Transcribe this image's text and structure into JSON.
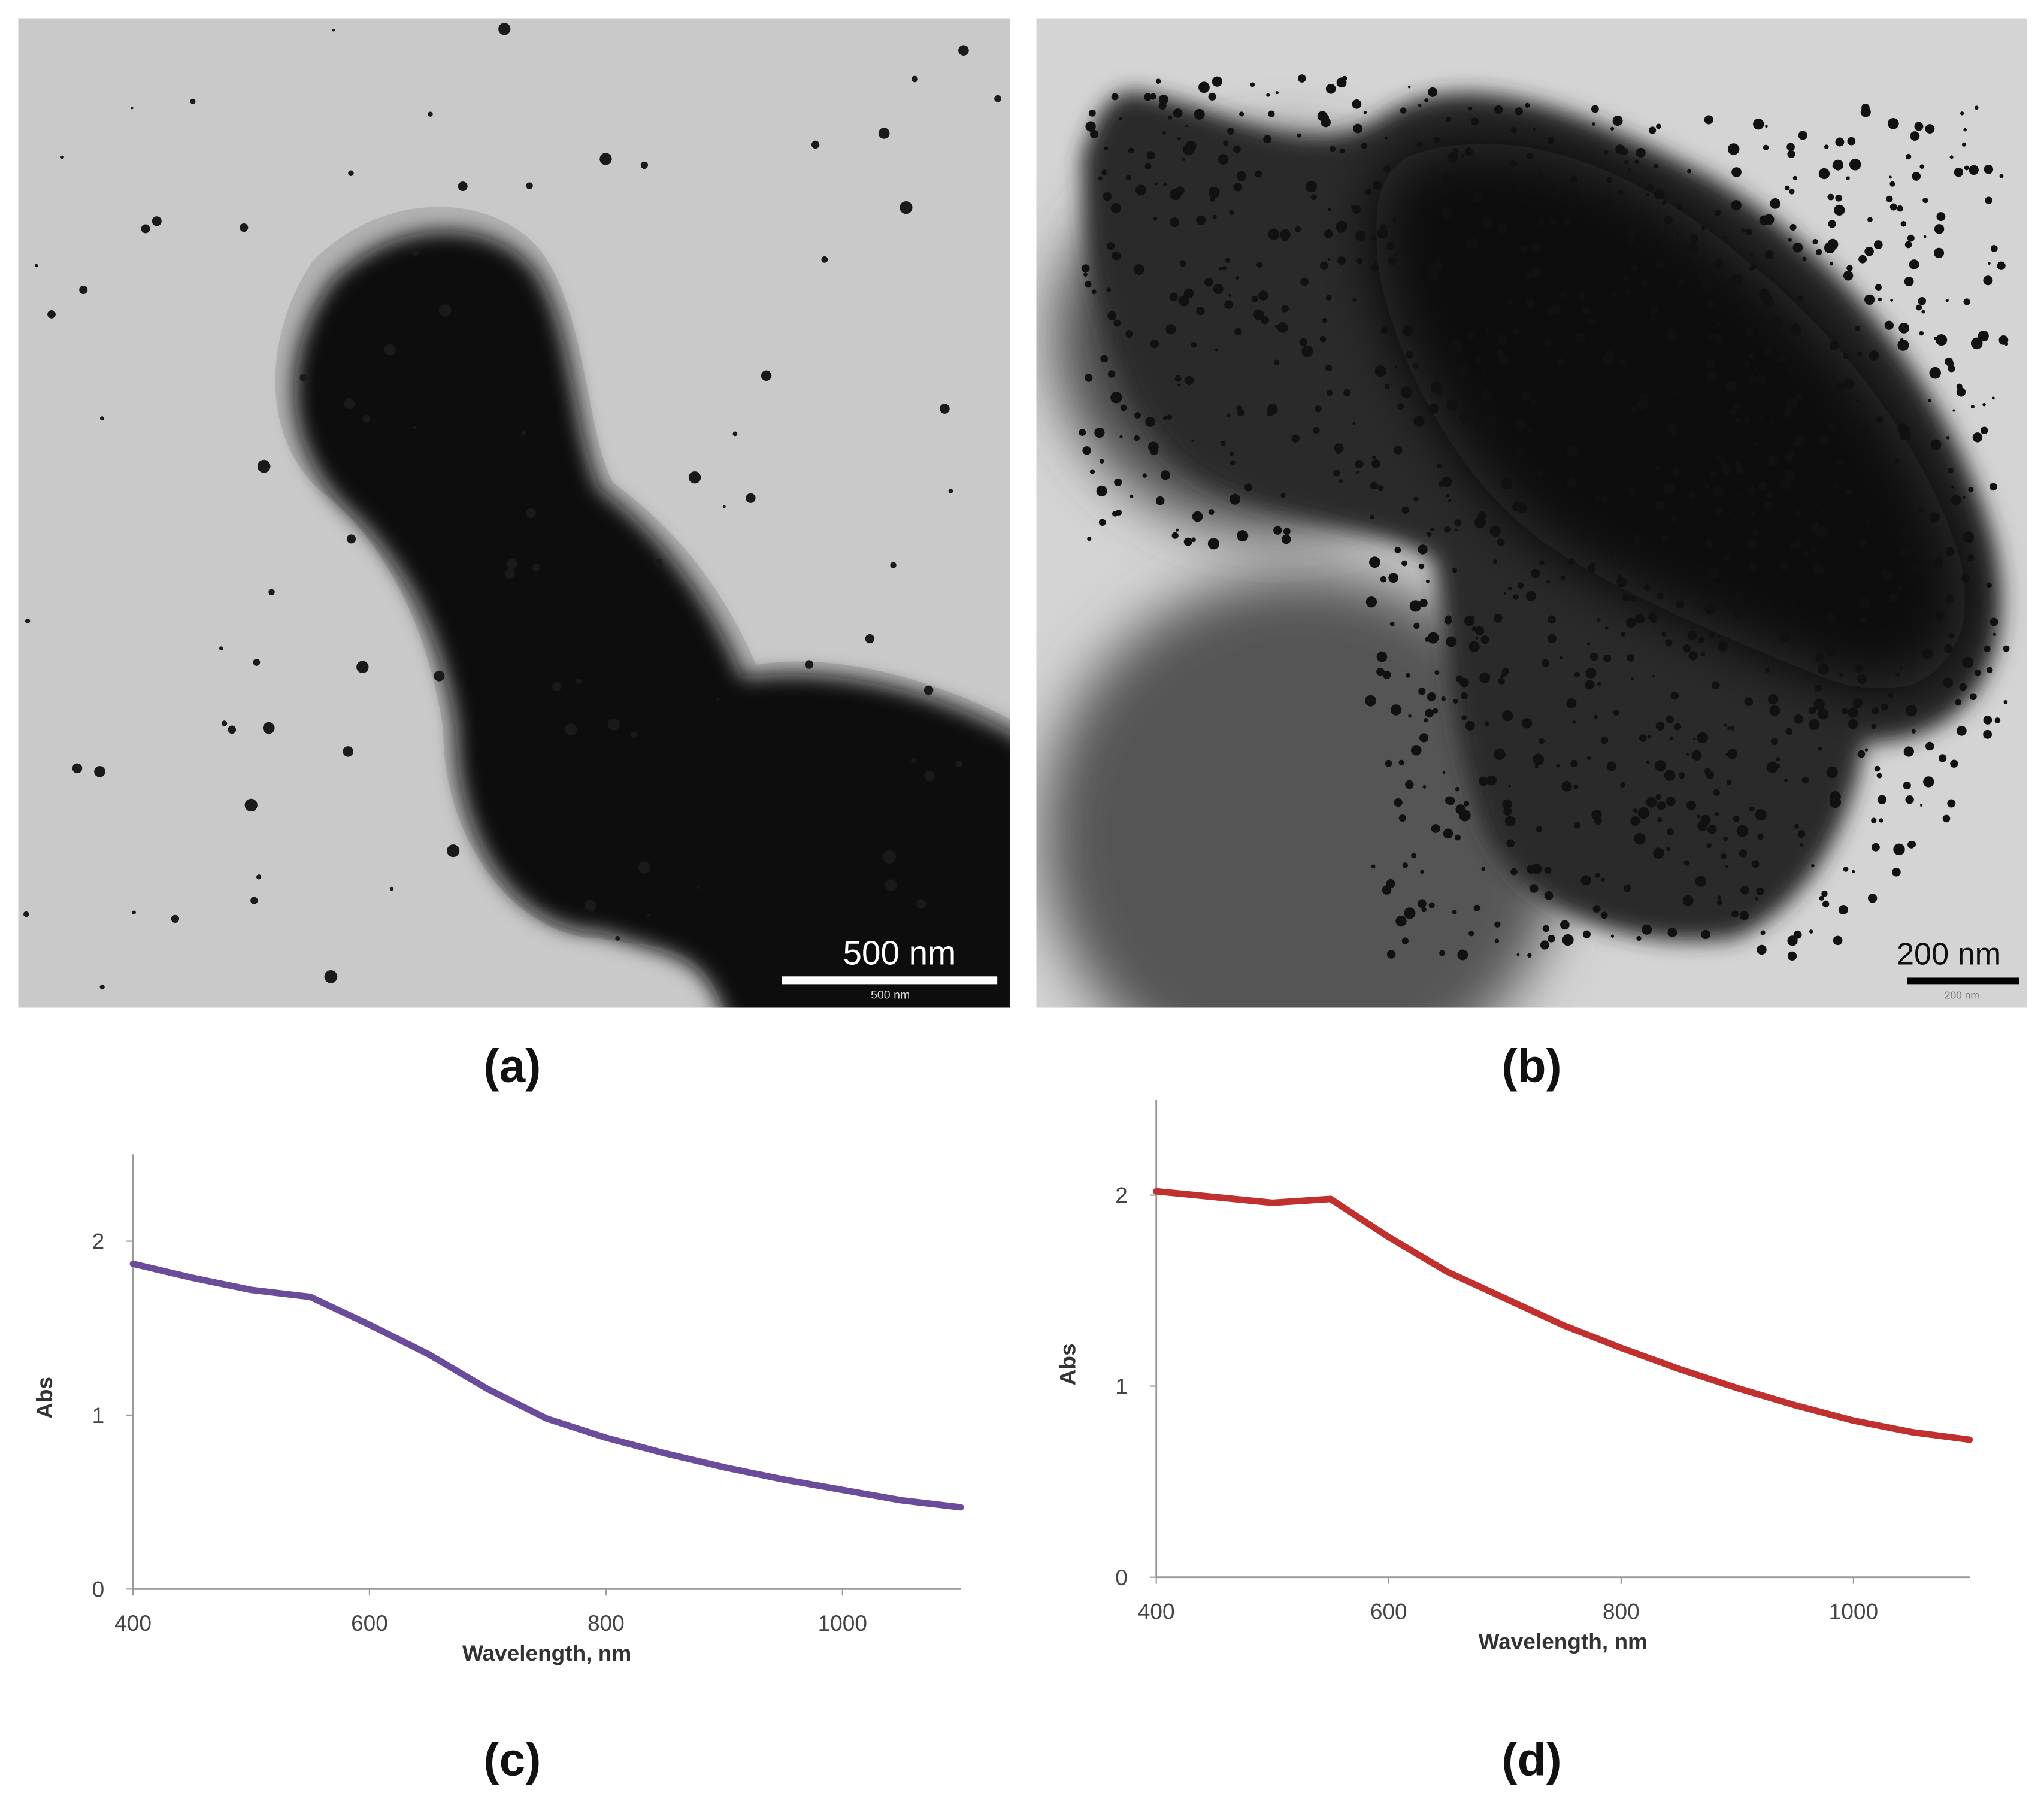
{
  "panels": [
    {
      "label": "(a)",
      "scale_bar": "500 nm",
      "scale_bar_sublabel": "500 nm"
    },
    {
      "label": "(b)",
      "scale_bar": "200 nm",
      "scale_bar_sublabel": "200 nm"
    },
    {
      "label": "(c)"
    },
    {
      "label": "(d)"
    }
  ],
  "chart_data": [
    {
      "type": "line",
      "x_label": "Wavelength, nm",
      "y_label": "Abs",
      "x": [
        400,
        450,
        500,
        550,
        600,
        650,
        700,
        750,
        800,
        850,
        900,
        950,
        1000,
        1050,
        1100
      ],
      "series": [
        {
          "color": "#6b4c9a",
          "values": [
            1.87,
            1.79,
            1.72,
            1.68,
            1.52,
            1.35,
            1.15,
            0.98,
            0.87,
            0.78,
            0.7,
            0.63,
            0.57,
            0.51,
            0.47
          ]
        }
      ],
      "xlim": [
        400,
        1100
      ],
      "xticks": [
        400,
        600,
        800,
        1000
      ],
      "ylim": [
        0,
        2.5
      ],
      "yticks": [
        0,
        1,
        2
      ]
    },
    {
      "type": "line",
      "x_label": "Wavelength, nm",
      "y_label": "Abs",
      "x": [
        400,
        450,
        500,
        550,
        600,
        650,
        700,
        750,
        800,
        850,
        900,
        950,
        1000,
        1050,
        1100
      ],
      "series": [
        {
          "color": "#c0302e",
          "values": [
            2.02,
            1.99,
            1.96,
            1.98,
            1.78,
            1.6,
            1.46,
            1.32,
            1.2,
            1.09,
            0.99,
            0.9,
            0.82,
            0.76,
            0.72
          ]
        }
      ],
      "xlim": [
        400,
        1100
      ],
      "xticks": [
        400,
        600,
        800,
        1000
      ],
      "ylim": [
        0,
        2.5
      ],
      "yticks": [
        0,
        1,
        2
      ]
    }
  ]
}
